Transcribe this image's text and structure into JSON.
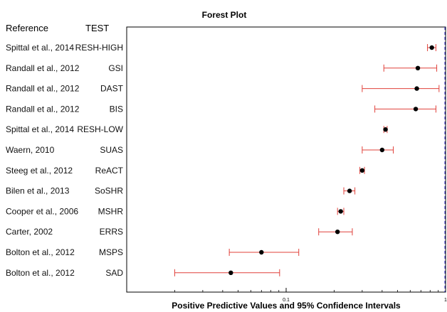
{
  "chart_data": {
    "type": "forest",
    "title": "Forest Plot",
    "xlabel": "Positive Predictive Values and 95% Confidence Intervals",
    "x_scale": "log",
    "xlim": [
      0.01,
      1
    ],
    "x_ticks": [
      {
        "value": 0.1,
        "label": "0.1"
      },
      {
        "value": 1,
        "label": "1"
      }
    ],
    "reference_line": {
      "x": 1,
      "style": "dashed",
      "color": "#3b3bd6"
    },
    "column_headers": {
      "reference": "Reference",
      "test": "TEST"
    },
    "rows": [
      {
        "reference": "Spittal et al., 2014",
        "test": "RESH-HIGH",
        "estimate": 0.82,
        "lower": 0.77,
        "upper": 0.87
      },
      {
        "reference": "Randall et al., 2012",
        "test": "GSI",
        "estimate": 0.67,
        "lower": 0.41,
        "upper": 0.88
      },
      {
        "reference": "Randall et al., 2012",
        "test": "DAST",
        "estimate": 0.66,
        "lower": 0.3,
        "upper": 0.91
      },
      {
        "reference": "Randall et al., 2012",
        "test": "BIS",
        "estimate": 0.65,
        "lower": 0.36,
        "upper": 0.87
      },
      {
        "reference": "Spittal et al., 2014",
        "test": "RESH-LOW",
        "estimate": 0.42,
        "lower": 0.41,
        "upper": 0.43
      },
      {
        "reference": "Waern, 2010",
        "test": "SUAS",
        "estimate": 0.4,
        "lower": 0.3,
        "upper": 0.47
      },
      {
        "reference": "Steeg et al., 2012",
        "test": "ReACT",
        "estimate": 0.3,
        "lower": 0.29,
        "upper": 0.31
      },
      {
        "reference": "Bilen et al., 2013",
        "test": "SoSHR",
        "estimate": 0.25,
        "lower": 0.23,
        "upper": 0.27
      },
      {
        "reference": "Cooper et al., 2006",
        "test": "MSHR",
        "estimate": 0.22,
        "lower": 0.21,
        "upper": 0.23
      },
      {
        "reference": "Carter, 2002",
        "test": "ERRS",
        "estimate": 0.21,
        "lower": 0.16,
        "upper": 0.26
      },
      {
        "reference": "Bolton et al., 2012",
        "test": "MSPS",
        "estimate": 0.07,
        "lower": 0.044,
        "upper": 0.12
      },
      {
        "reference": "Bolton et al., 2012",
        "test": "SAD",
        "estimate": 0.045,
        "lower": 0.02,
        "upper": 0.091
      }
    ],
    "colors": {
      "ci": "#e0403a",
      "point": "#000000",
      "frame": "#000000"
    }
  }
}
